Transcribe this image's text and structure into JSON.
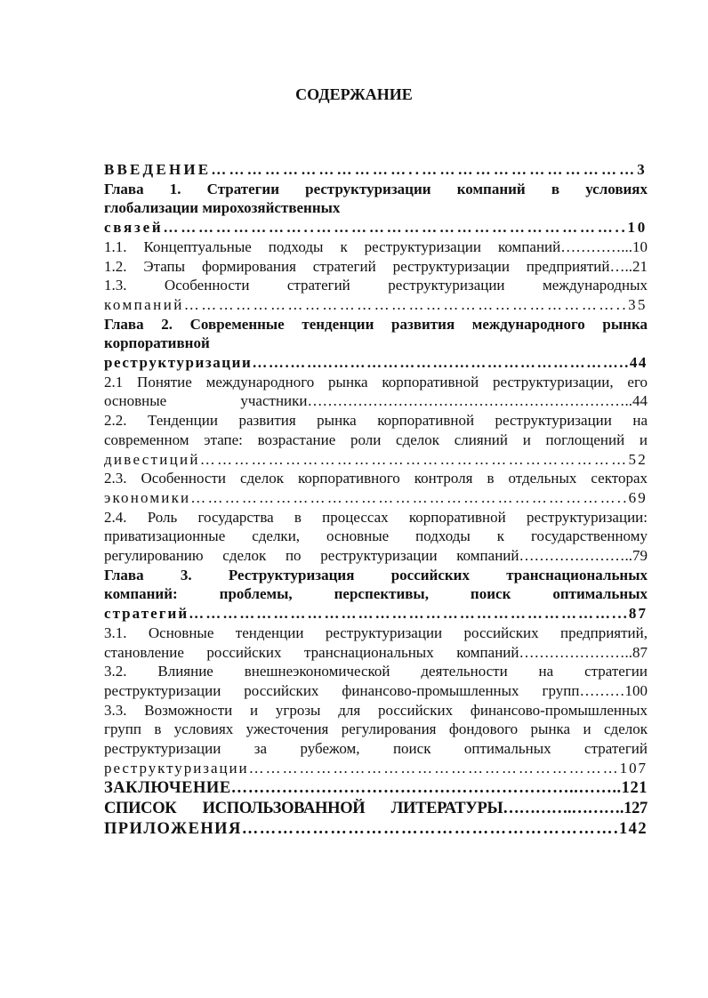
{
  "header": {
    "title": "СОДЕРЖАНИЕ"
  },
  "entries": [
    {
      "bold": true,
      "lines": [
        "ВВЕДЕНИЕ……………………………..………………………………3"
      ]
    },
    {
      "bold": true,
      "lines": [
        "Глава 1. Стратегии реструктуризации компаний в условиях",
        "глобализации мирохозяйственных",
        "связей……………………..……………………………………………..10"
      ]
    },
    {
      "bold": false,
      "lines": [
        "1.1. Концептуальные  подходы к реструктуризации компаний…………...10"
      ]
    },
    {
      "bold": false,
      "lines": [
        "1.2. Этапы формирования стратегий реструктуризации предприятий…..21"
      ]
    },
    {
      "bold": false,
      "lines": [
        "1.3. Особенности стратегий реструктуризации международных",
        "компаний…………………………………………………………………..35"
      ]
    },
    {
      "bold": true,
      "lines": [
        "Глава 2. Современные тенденции развития  международного рынка",
        "корпоративной",
        "реструктуризации…….……..………………….…………………………..44"
      ]
    },
    {
      "bold": false,
      "lines": [
        "2.1 Понятие  международного рынка корпоративной реструктуризации, его",
        "основные участники………………………………………………………..44"
      ]
    },
    {
      "bold": false,
      "lines": [
        "2.2. Тенденции развития рынка корпоративной реструктуризации на",
        "современном этапе: возрастание роли сделок слияний и поглощений и",
        "дивестиций…………………………………………………………………52"
      ]
    },
    {
      "bold": false,
      "lines": [
        "2.3. Особенности сделок корпоративного контроля в отдельных секторах",
        "экономики…………………………………………………………………..69"
      ]
    },
    {
      "bold": false,
      "lines": [
        "2.4. Роль государства в процессах корпоративной реструктуризации:",
        "приватизационные сделки, основные подходы к государственному",
        "регулированию сделок по реструктуризации компаний…………………..79"
      ]
    },
    {
      "bold": true,
      "lines": [
        "Глава 3. Реструктуризация российских транснациональных",
        "компаний: проблемы, перспективы, поиск оптимальных",
        "стратегий…………………………………………………………………...87"
      ]
    },
    {
      "bold": false,
      "lines": [
        "3.1. Основные тенденции реструктуризации российских предприятий,",
        "становление российских транснациональных компаний…………………..87"
      ]
    },
    {
      "bold": false,
      "lines": [
        "3.2. Влияние внешнеэкономической деятельности на стратегии",
        "реструктуризации российских финансово-промышленных групп………100"
      ]
    },
    {
      "bold": false,
      "lines": [
        "3.3. Возможности и угрозы для российских финансово-промышленных",
        "групп в условиях ужесточения регулирования фондового рынка и сделок",
        "реструктуризации за рубежом, поиск оптимальных стратегий",
        "реструктуризации…………………………………………………………107"
      ]
    },
    {
      "bold": true,
      "lines": [
        "ЗАКЛЮЧЕНИЕ……………………………………………………..……..121"
      ]
    },
    {
      "bold": true,
      "lines": [
        "СПИСОК ИСПОЛЬЗОВАННОЙ ЛИТЕРАТУРЫ………….……….127"
      ]
    },
    {
      "bold": true,
      "lines": [
        "ПРИЛОЖЕНИЯ……………………………………………………….142"
      ]
    }
  ]
}
